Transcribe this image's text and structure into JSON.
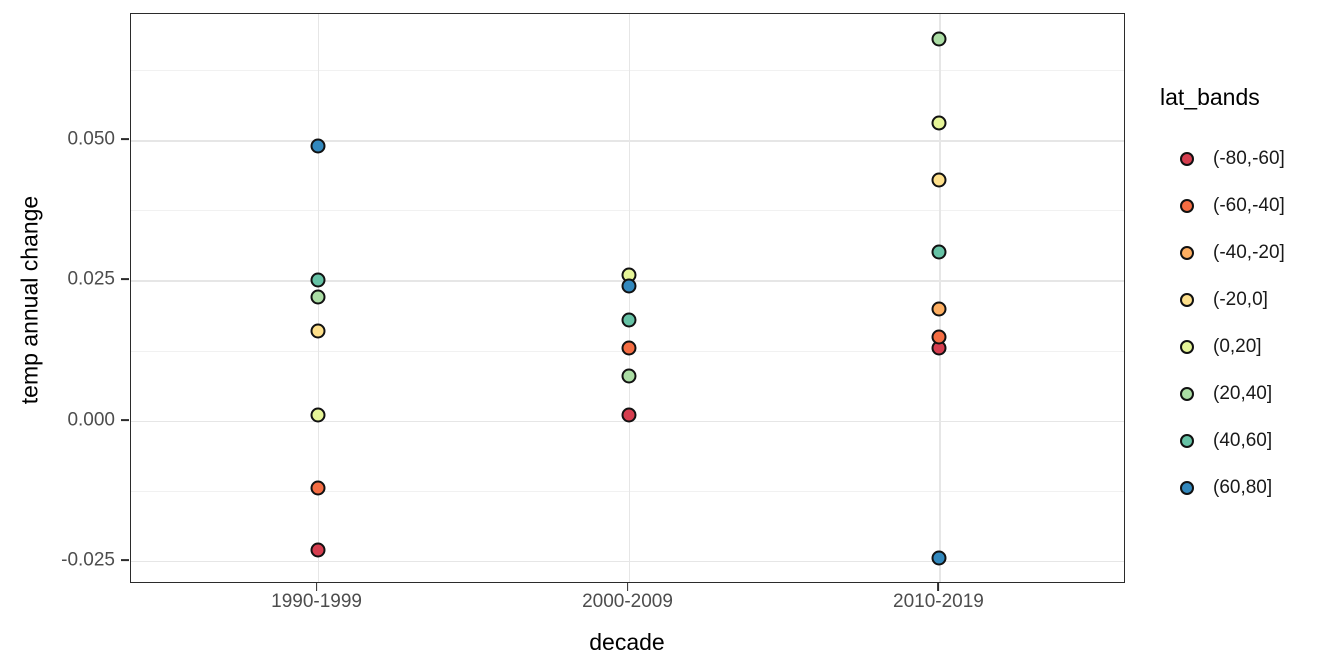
{
  "chart_data": {
    "type": "scatter",
    "title": "",
    "xlabel": "decade",
    "ylabel": "temp annual change",
    "categories": [
      "1990-1999",
      "2000-2009",
      "2010-2019"
    ],
    "y_ticks": {
      "values": [
        0.05,
        0.025,
        0.0,
        -0.025
      ],
      "labels": [
        "0.050",
        "0.025",
        "0.000",
        "-0.025"
      ]
    },
    "y_minor_ticks": [
      0.0625,
      0.0375,
      0.0125,
      -0.0125
    ],
    "ylim": [
      -0.0291,
      0.0725
    ],
    "grid": true,
    "legend": {
      "title": "lat_bands",
      "position": "right"
    },
    "series": [
      {
        "name": "(-80,-60]",
        "color": "#d53e4f",
        "points": [
          {
            "x": "1990-1999",
            "y": -0.023
          },
          {
            "x": "2000-2009",
            "y": 0.001
          },
          {
            "x": "2010-2019",
            "y": 0.013
          }
        ]
      },
      {
        "name": "(-60,-40]",
        "color": "#f46d43",
        "points": [
          {
            "x": "1990-1999",
            "y": -0.012
          },
          {
            "x": "2000-2009",
            "y": 0.013
          },
          {
            "x": "2010-2019",
            "y": 0.015
          }
        ]
      },
      {
        "name": "(-40,-20]",
        "color": "#fdae61",
        "points": [
          {
            "x": "2010-2019",
            "y": 0.02
          }
        ]
      },
      {
        "name": "(-20,0]",
        "color": "#fee08b",
        "points": [
          {
            "x": "1990-1999",
            "y": 0.016
          },
          {
            "x": "2010-2019",
            "y": 0.043
          }
        ]
      },
      {
        "name": "(0,20]",
        "color": "#e6f598",
        "points": [
          {
            "x": "1990-1999",
            "y": 0.001
          },
          {
            "x": "2000-2009",
            "y": 0.026
          },
          {
            "x": "2010-2019",
            "y": 0.053
          }
        ]
      },
      {
        "name": "(20,40]",
        "color": "#abdda4",
        "points": [
          {
            "x": "1990-1999",
            "y": 0.022
          },
          {
            "x": "2000-2009",
            "y": 0.008
          },
          {
            "x": "2010-2019",
            "y": 0.068
          }
        ]
      },
      {
        "name": "(40,60]",
        "color": "#66c2a5",
        "points": [
          {
            "x": "1990-1999",
            "y": 0.025
          },
          {
            "x": "2000-2009",
            "y": 0.018
          },
          {
            "x": "2010-2019",
            "y": 0.03
          }
        ]
      },
      {
        "name": "(60,80]",
        "color": "#3288bd",
        "points": [
          {
            "x": "1990-1999",
            "y": 0.049
          },
          {
            "x": "2000-2009",
            "y": 0.024
          },
          {
            "x": "2010-2019",
            "y": -0.0245
          }
        ]
      }
    ],
    "style": {
      "panel_border_color": "#2b2b2b",
      "major_grid_color": "#e6e6e6",
      "minor_grid_color": "#f1f1f1",
      "tick_label_color": "#4d4d4d",
      "axis_title_color": "#000000",
      "point_outline_color": "#111111"
    }
  }
}
